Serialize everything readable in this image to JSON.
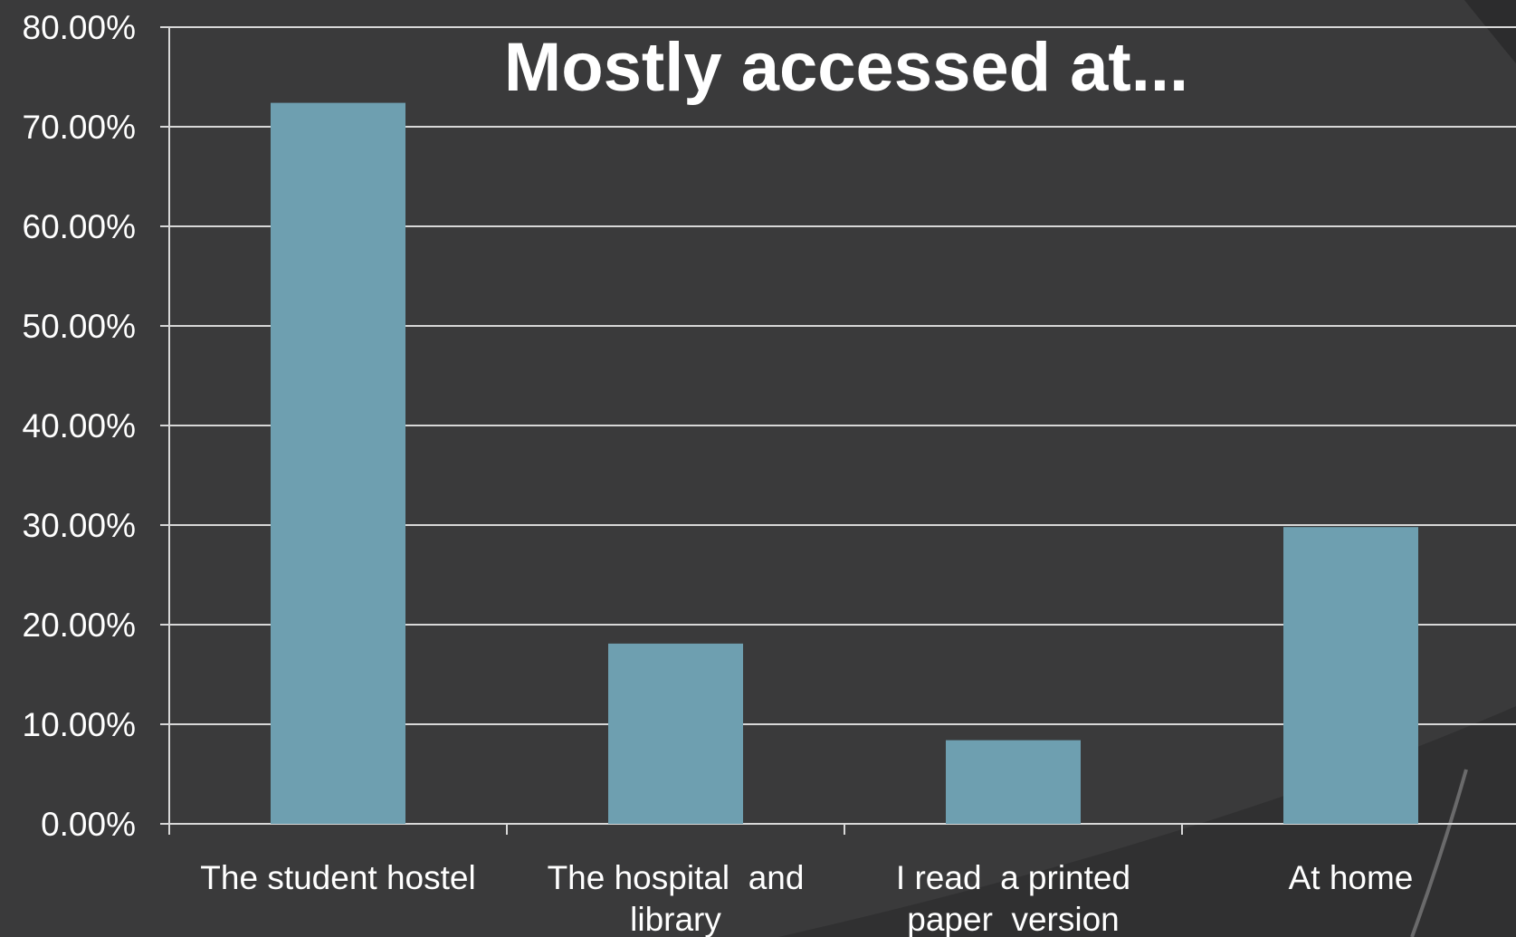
{
  "chart_data": {
    "type": "bar",
    "title": "Mostly accessed at...",
    "xlabel": "",
    "ylabel": "",
    "categories": [
      [
        "The student hostel"
      ],
      [
        "The hospital  and",
        "library"
      ],
      [
        "I read  a printed",
        "paper  version"
      ],
      [
        "At home"
      ]
    ],
    "values": [
      72.4,
      18.1,
      8.4,
      29.8
    ],
    "ylim": [
      0,
      80
    ],
    "yticks": [
      0,
      10,
      20,
      30,
      40,
      50,
      60,
      70,
      80
    ],
    "ytick_labels": [
      "0.00%",
      "10.00%",
      "20.00%",
      "30.00%",
      "40.00%",
      "50.00%",
      "60.00%",
      "70.00%",
      "80.00%"
    ],
    "grid": true,
    "legend": "none"
  },
  "colors": {
    "background": "#3a3a3b",
    "bar": "#6e9fb0",
    "gridline": "#d8d8d8",
    "text": "#ffffff",
    "background_arc": "#2c2c2d"
  }
}
